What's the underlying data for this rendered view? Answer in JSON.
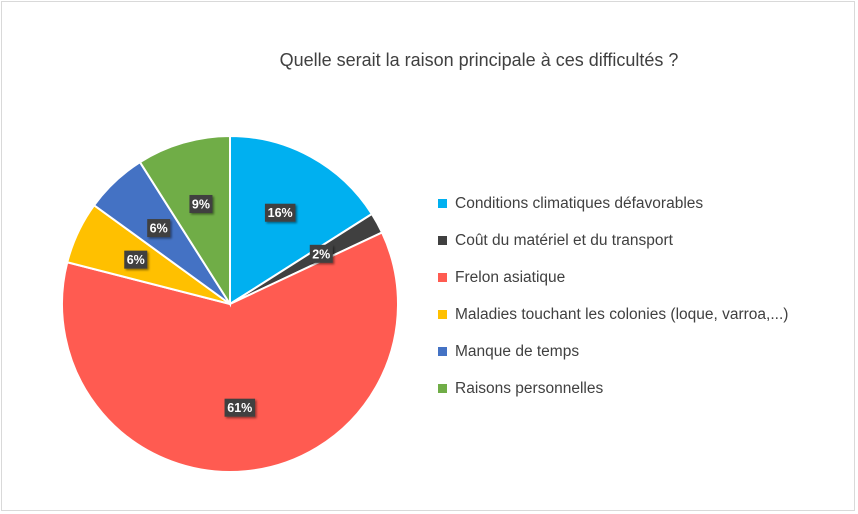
{
  "chart_data": {
    "type": "pie",
    "title": "Quelle serait la raison principale à ces difficultés ?",
    "legend_position": "right",
    "slices": [
      {
        "label": "Conditions climatiques défavorables",
        "value": 16,
        "value_label": "16%",
        "color": "#00B0F0"
      },
      {
        "label": "Coût du matériel et du transport",
        "value": 2,
        "value_label": "2%",
        "color": "#404040"
      },
      {
        "label": "Frelon asiatique",
        "value": 61,
        "value_label": "61%",
        "color": "#FF5B51"
      },
      {
        "label": "Maladies touchant les colonies (loque, varroa,...)",
        "value": 6,
        "value_label": "6%",
        "color": "#FFC000"
      },
      {
        "label": "Manque de temps",
        "value": 6,
        "value_label": "6%",
        "color": "#4472C4"
      },
      {
        "label": "Raisons personnelles",
        "value": 9,
        "value_label": "9%",
        "color": "#70AD47"
      }
    ]
  }
}
